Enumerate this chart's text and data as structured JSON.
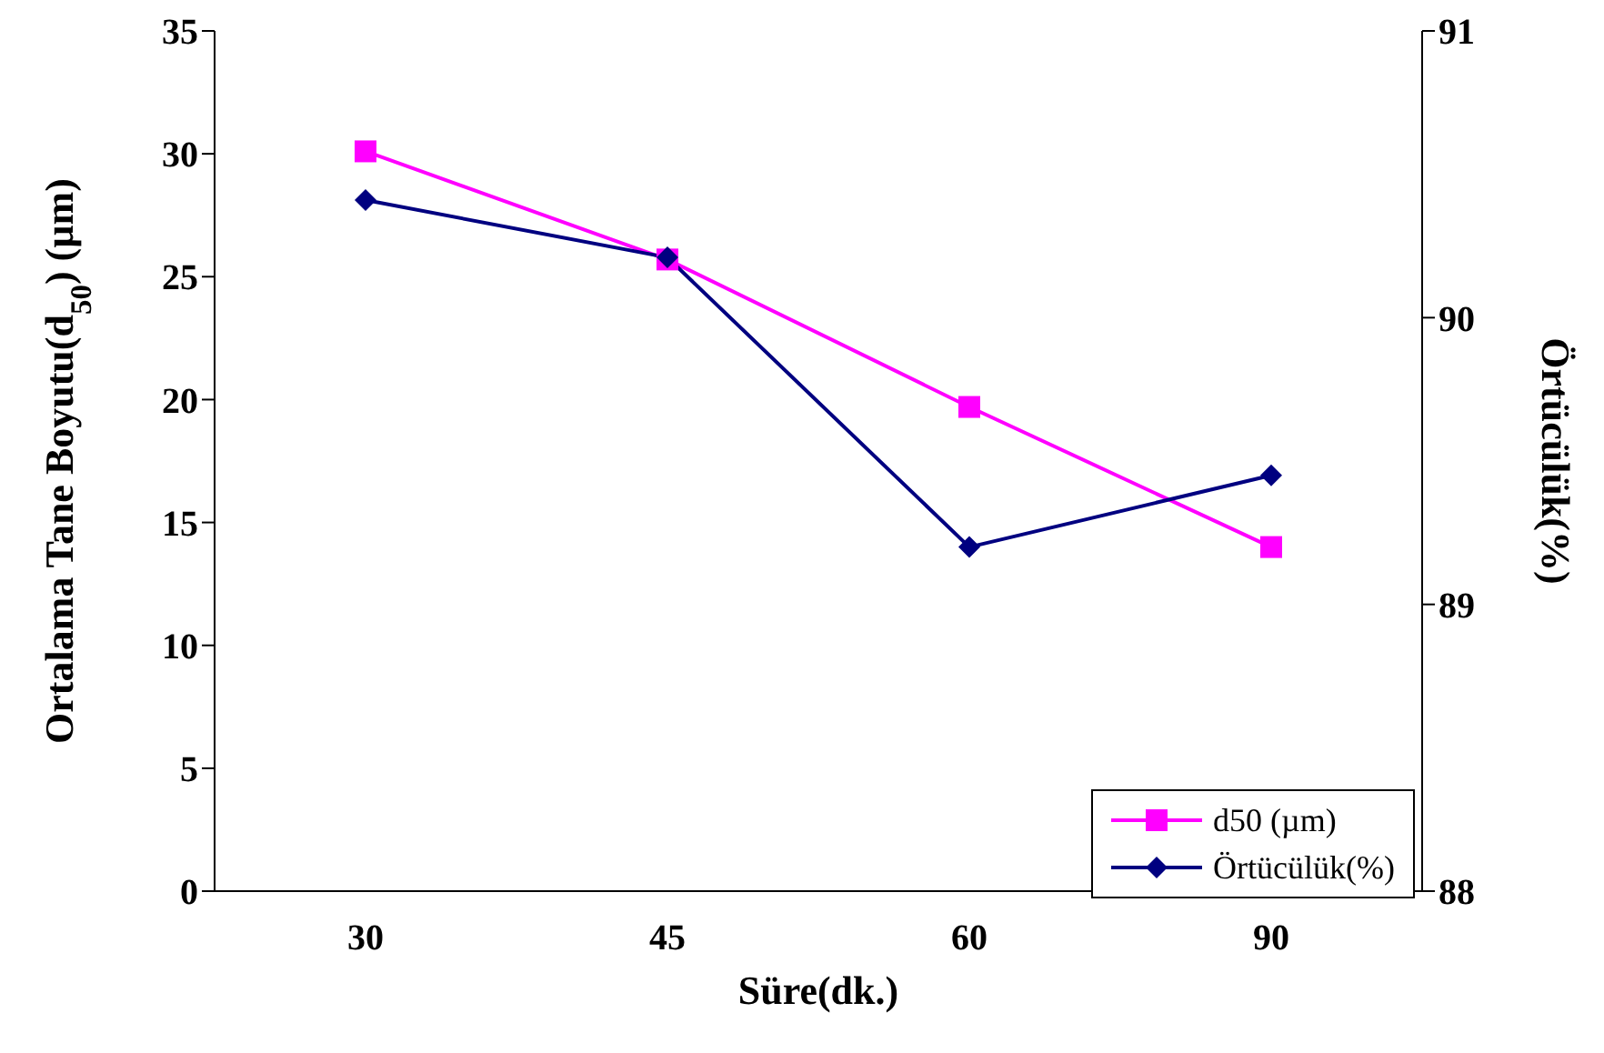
{
  "chart_data": {
    "type": "line",
    "xlabel": "Süre(dk.)",
    "ylabel": "Ortalama Tane Boyutu(d$_{50}$) (µm)",
    "y2label": "Örtücülük(%)",
    "categories": [
      "30",
      "45",
      "60",
      "90"
    ],
    "series": [
      {
        "name": "d50 (µm)",
        "color": "#ff00ff",
        "marker": "square",
        "values": [
          30.1,
          25.7,
          19.7,
          14.0
        ]
      },
      {
        "name": "Örtücülük(%)",
        "color": "#000080",
        "marker": "diamond",
        "axis": "y2",
        "values": [
          90.41,
          90.21,
          89.2,
          89.45
        ]
      }
    ],
    "ylim": [
      0,
      35
    ],
    "yticks": [
      0,
      5,
      10,
      15,
      20,
      25,
      30,
      35
    ],
    "y2lim": [
      88,
      91
    ],
    "y2ticks": [
      88,
      89,
      90,
      91
    ],
    "grid": false,
    "legend": "bottom right",
    "line_style": "solid"
  }
}
